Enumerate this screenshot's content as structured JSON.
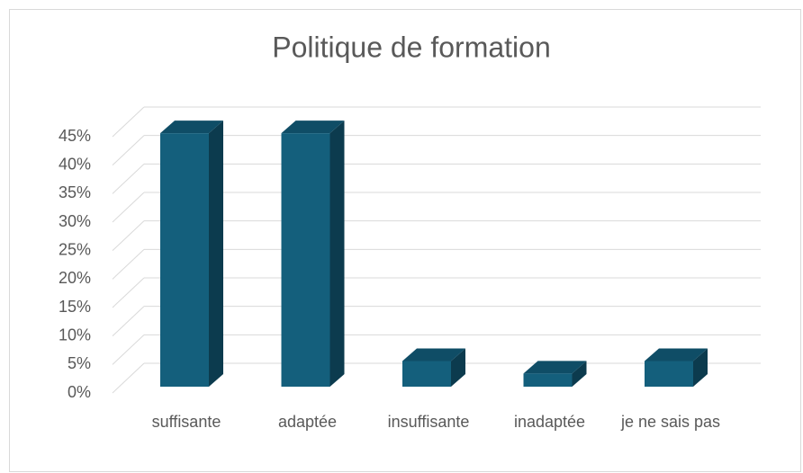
{
  "chart_data": {
    "type": "bar3d",
    "title": "Politique de formation",
    "categories": [
      "suffisante",
      "adaptée",
      "insuffisante",
      "inadaptée",
      "je ne sais pas"
    ],
    "values": [
      44.5,
      44.5,
      4.5,
      2.3,
      4.5
    ],
    "color": "#145f7c",
    "ylim": [
      0,
      45
    ],
    "yticks": [
      {
        "value": 0,
        "label": "0%"
      },
      {
        "value": 5,
        "label": "5%"
      },
      {
        "value": 10,
        "label": "10%"
      },
      {
        "value": 15,
        "label": "15%"
      },
      {
        "value": 20,
        "label": "20%"
      },
      {
        "value": 25,
        "label": "25%"
      },
      {
        "value": 30,
        "label": "30%"
      },
      {
        "value": 35,
        "label": "35%"
      },
      {
        "value": 40,
        "label": "40%"
      },
      {
        "value": 45,
        "label": "45%"
      }
    ],
    "grid": true
  }
}
